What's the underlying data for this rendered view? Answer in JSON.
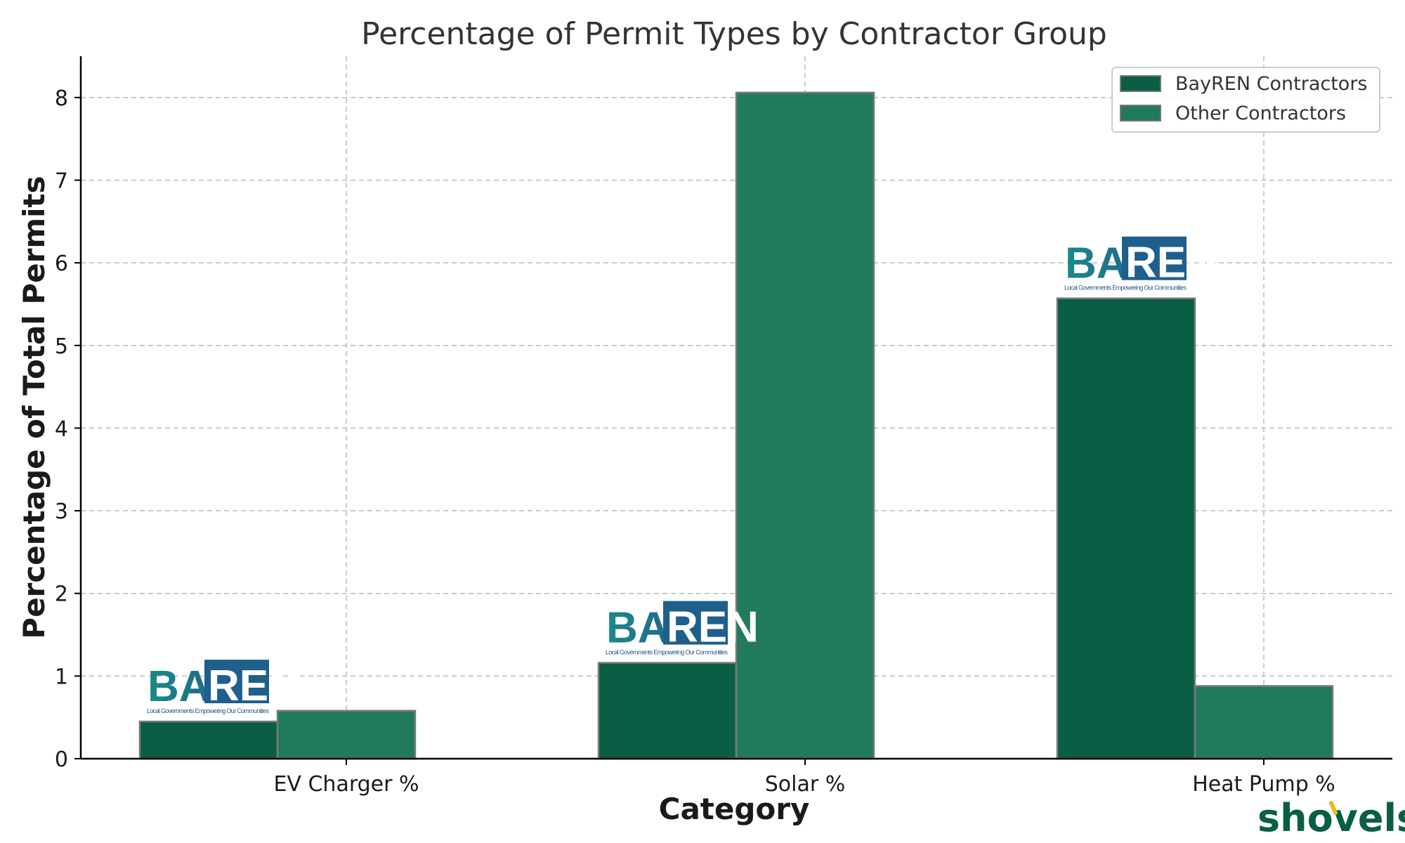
{
  "chart_data": {
    "type": "bar",
    "title": "Percentage of Permit Types by Contractor Group",
    "xlabel": "Category",
    "ylabel": "Percentage of Total Permits",
    "categories": [
      "EV Charger %",
      "Solar %",
      "Heat Pump %"
    ],
    "series": [
      {
        "name": "BayREN Contractors",
        "values": [
          0.45,
          1.16,
          5.57
        ],
        "color": "#0a5e45"
      },
      {
        "name": "Other Contractors",
        "values": [
          0.58,
          8.06,
          0.88
        ],
        "color": "#217a5e"
      }
    ],
    "ylim": [
      0,
      8.5
    ],
    "yticks": [
      0,
      1,
      2,
      3,
      4,
      5,
      6,
      7,
      8
    ],
    "grid": true,
    "legend_position": "top-right"
  },
  "logos": {
    "bayren": {
      "word_left": "BAY",
      "word_right": "REN",
      "tagline": "Local Governments Empowering Our Communities"
    }
  },
  "watermark": {
    "text": "shovels",
    "accent_color": "#e8b923"
  },
  "colors": {
    "bayren_dark": "#0a5e45",
    "other_green": "#217a5e",
    "logo_teal": "#1a8a8a",
    "logo_blue": "#1f5f8b"
  }
}
